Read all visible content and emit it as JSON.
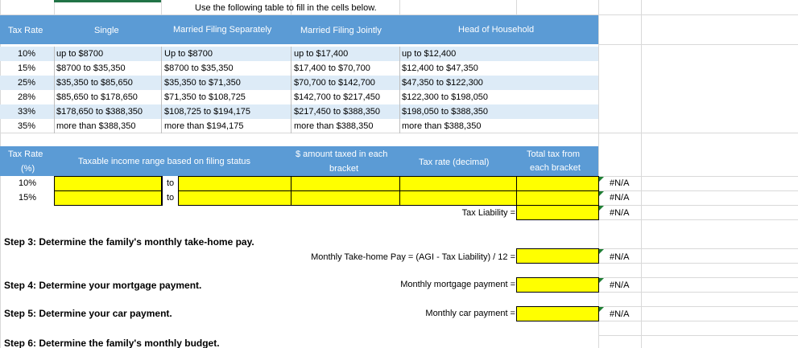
{
  "instruction": "Use the following table to fill in the cells below.",
  "bracket_table": {
    "headers": [
      "Tax Rate",
      "Single",
      "Married Filing Separately",
      "Married Filing Jointly",
      "Head of Household"
    ],
    "rows": [
      [
        "10%",
        "up to $8700",
        "Up to $8700",
        "up to $17,400",
        "up to $12,400"
      ],
      [
        "15%",
        "$8700 to $35,350",
        "$8700 to $35,350",
        "$17,400 to $70,700",
        "$12,400 to $47,350"
      ],
      [
        "25%",
        "$35,350 to $85,650",
        "$35,350 to $71,350",
        "$70,700 to $142,700",
        "$47,350 to $122,300"
      ],
      [
        "28%",
        "$85,650 to $178,650",
        "$71,350 to $108,725",
        "$142,700 to $217,450",
        "$122,300 to $198,050"
      ],
      [
        "33%",
        "$178,650 to $388,350",
        "$108,725 to $194,175",
        "$217,450 to $388,350",
        "$198,050 to $388,350"
      ],
      [
        "35%",
        "more than $388,350",
        "more than $194,175",
        "more than $388,350",
        "more than $388,350"
      ]
    ]
  },
  "calc_table": {
    "headers": {
      "rate_line1": "Tax Rate",
      "rate_line2": "(%)",
      "range": "Taxable income range based on filing status",
      "amount_line1": "$ amount taxed in each",
      "amount_line2": "bracket",
      "decimal": "Tax rate (decimal)",
      "total_line1": "Total tax from",
      "total_line2": "each bracket"
    },
    "rows": [
      {
        "rate": "10%",
        "to": "to",
        "result": "#N/A"
      },
      {
        "rate": "15%",
        "to": "to",
        "result": "#N/A"
      }
    ],
    "liability_label": "Tax Liability =",
    "liability_result": "#N/A"
  },
  "steps": {
    "step3": "Step 3: Determine the family's monthly take-home pay.",
    "step3_formula": "Monthly Take-home Pay = (AGI - Tax Liability) / 12 =",
    "step3_result": "#N/A",
    "step4": "Step 4: Determine your mortgage payment.",
    "step4_label": "Monthly mortgage payment =",
    "step4_result": "#N/A",
    "step5": "Step 5: Determine your car payment.",
    "step5_label": "Monthly car payment =",
    "step5_result": "#N/A",
    "step6": "Step 6: Determine the family's monthly budget."
  }
}
